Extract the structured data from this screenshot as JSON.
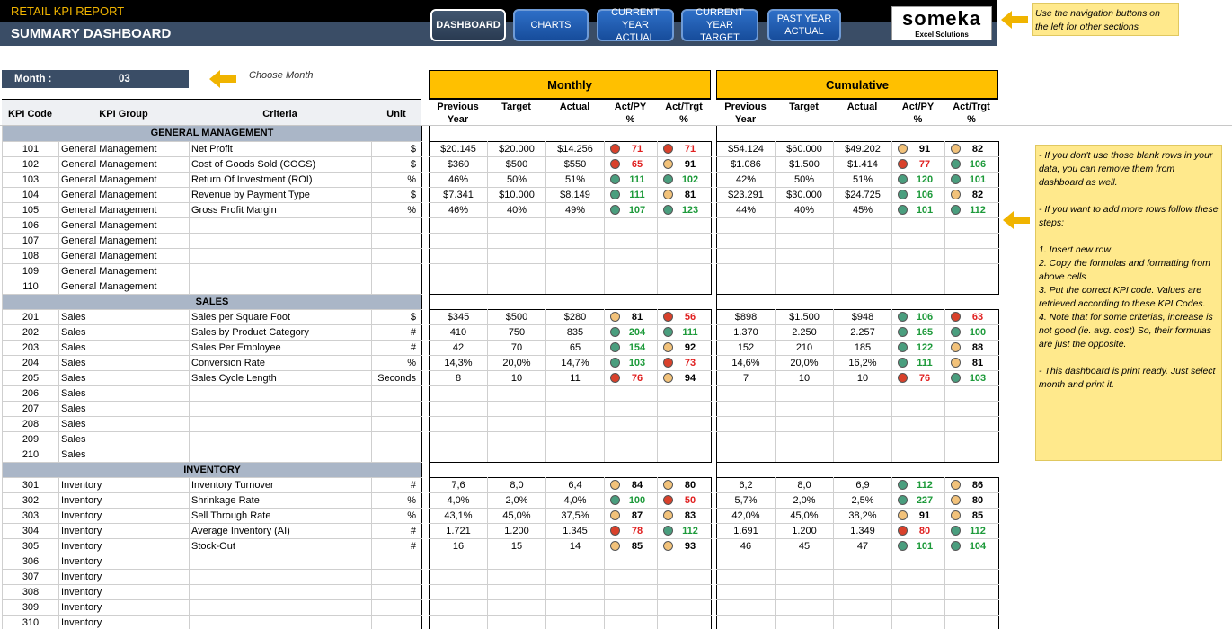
{
  "header": {
    "title_small": "RETAIL KPI REPORT",
    "title_main": "SUMMARY DASHBOARD",
    "nav": [
      {
        "label": "DASHBOARD",
        "active": true
      },
      {
        "label": "CHARTS",
        "active": false
      },
      {
        "label": "CURRENT YEAR\nACTUAL",
        "active": false
      },
      {
        "label": "CURRENT YEAR\nTARGET",
        "active": false
      },
      {
        "label": "PAST YEAR\nACTUAL",
        "active": false
      }
    ],
    "logo_name": "someka",
    "logo_sub": "Excel Solutions",
    "nav_note": "Use the navigation buttons on\nthe left for other sections"
  },
  "month": {
    "label": "Month :",
    "value": "03",
    "hint": "Choose Month"
  },
  "sections": {
    "monthly": "Monthly",
    "cumulative": "Cumulative"
  },
  "columns": {
    "left": [
      "KPI Code",
      "KPI Group",
      "Criteria",
      "Unit"
    ],
    "data": [
      "Previous\nYear",
      "Target",
      "Actual",
      "Act/PY\n%",
      "Act/Trgt\n%"
    ]
  },
  "colors": {
    "green": "#4a9e7e",
    "red": "#d9412b",
    "orange": "#f2c27a",
    "nav_bg": "#3a4d66",
    "accent": "#ffc000",
    "note": "#ffe98c"
  },
  "groups": [
    {
      "name": "GENERAL MANAGEMENT",
      "rows": [
        {
          "code": "101",
          "group": "General Management",
          "criteria": "Net Profit",
          "unit": "$",
          "m": [
            "$20.145",
            "$20.000",
            "$14.256",
            {
              "v": "71",
              "c": "red"
            },
            {
              "v": "71",
              "c": "red"
            }
          ],
          "c": [
            "$54.124",
            "$60.000",
            "$49.202",
            {
              "v": "91",
              "c": "orange"
            },
            {
              "v": "82",
              "c": "orange"
            }
          ]
        },
        {
          "code": "102",
          "group": "General Management",
          "criteria": "Cost of Goods Sold (COGS)",
          "unit": "$",
          "m": [
            "$360",
            "$500",
            "$550",
            {
              "v": "65",
              "c": "red"
            },
            {
              "v": "91",
              "c": "orange"
            }
          ],
          "c": [
            "$1.086",
            "$1.500",
            "$1.414",
            {
              "v": "77",
              "c": "red"
            },
            {
              "v": "106",
              "c": "green"
            }
          ]
        },
        {
          "code": "103",
          "group": "General Management",
          "criteria": "Return Of Investment (ROI)",
          "unit": "%",
          "m": [
            "46%",
            "50%",
            "51%",
            {
              "v": "111",
              "c": "green"
            },
            {
              "v": "102",
              "c": "green"
            }
          ],
          "c": [
            "42%",
            "50%",
            "51%",
            {
              "v": "120",
              "c": "green"
            },
            {
              "v": "101",
              "c": "green"
            }
          ]
        },
        {
          "code": "104",
          "group": "General Management",
          "criteria": "Revenue by Payment Type",
          "unit": "$",
          "m": [
            "$7.341",
            "$10.000",
            "$8.149",
            {
              "v": "111",
              "c": "green"
            },
            {
              "v": "81",
              "c": "orange"
            }
          ],
          "c": [
            "$23.291",
            "$30.000",
            "$24.725",
            {
              "v": "106",
              "c": "green"
            },
            {
              "v": "82",
              "c": "orange"
            }
          ]
        },
        {
          "code": "105",
          "group": "General Management",
          "criteria": "Gross Profit Margin",
          "unit": "%",
          "m": [
            "46%",
            "40%",
            "49%",
            {
              "v": "107",
              "c": "green"
            },
            {
              "v": "123",
              "c": "green"
            }
          ],
          "c": [
            "44%",
            "40%",
            "45%",
            {
              "v": "101",
              "c": "green"
            },
            {
              "v": "112",
              "c": "green"
            }
          ]
        },
        {
          "code": "106",
          "group": "General Management",
          "criteria": "",
          "unit": "",
          "m": null,
          "c": null
        },
        {
          "code": "107",
          "group": "General Management",
          "criteria": "",
          "unit": "",
          "m": null,
          "c": null
        },
        {
          "code": "108",
          "group": "General Management",
          "criteria": "",
          "unit": "",
          "m": null,
          "c": null
        },
        {
          "code": "109",
          "group": "General Management",
          "criteria": "",
          "unit": "",
          "m": null,
          "c": null
        },
        {
          "code": "110",
          "group": "General Management",
          "criteria": "",
          "unit": "",
          "m": null,
          "c": null
        }
      ]
    },
    {
      "name": "SALES",
      "rows": [
        {
          "code": "201",
          "group": "Sales",
          "criteria": "Sales per Square Foot",
          "unit": "$",
          "m": [
            "$345",
            "$500",
            "$280",
            {
              "v": "81",
              "c": "orange"
            },
            {
              "v": "56",
              "c": "red"
            }
          ],
          "c": [
            "$898",
            "$1.500",
            "$948",
            {
              "v": "106",
              "c": "green"
            },
            {
              "v": "63",
              "c": "red"
            }
          ]
        },
        {
          "code": "202",
          "group": "Sales",
          "criteria": "Sales by Product Category",
          "unit": "#",
          "m": [
            "410",
            "750",
            "835",
            {
              "v": "204",
              "c": "green"
            },
            {
              "v": "111",
              "c": "green"
            }
          ],
          "c": [
            "1.370",
            "2.250",
            "2.257",
            {
              "v": "165",
              "c": "green"
            },
            {
              "v": "100",
              "c": "green"
            }
          ]
        },
        {
          "code": "203",
          "group": "Sales",
          "criteria": "Sales Per Employee",
          "unit": "#",
          "m": [
            "42",
            "70",
            "65",
            {
              "v": "154",
              "c": "green"
            },
            {
              "v": "92",
              "c": "orange"
            }
          ],
          "c": [
            "152",
            "210",
            "185",
            {
              "v": "122",
              "c": "green"
            },
            {
              "v": "88",
              "c": "orange"
            }
          ]
        },
        {
          "code": "204",
          "group": "Sales",
          "criteria": "Conversion Rate",
          "unit": "%",
          "m": [
            "14,3%",
            "20,0%",
            "14,7%",
            {
              "v": "103",
              "c": "green"
            },
            {
              "v": "73",
              "c": "red"
            }
          ],
          "c": [
            "14,6%",
            "20,0%",
            "16,2%",
            {
              "v": "111",
              "c": "green"
            },
            {
              "v": "81",
              "c": "orange"
            }
          ]
        },
        {
          "code": "205",
          "group": "Sales",
          "criteria": "Sales Cycle Length",
          "unit": "Seconds",
          "m": [
            "8",
            "10",
            "11",
            {
              "v": "76",
              "c": "red"
            },
            {
              "v": "94",
              "c": "orange"
            }
          ],
          "c": [
            "7",
            "10",
            "10",
            {
              "v": "76",
              "c": "red"
            },
            {
              "v": "103",
              "c": "green"
            }
          ]
        },
        {
          "code": "206",
          "group": "Sales",
          "criteria": "",
          "unit": "",
          "m": null,
          "c": null
        },
        {
          "code": "207",
          "group": "Sales",
          "criteria": "",
          "unit": "",
          "m": null,
          "c": null
        },
        {
          "code": "208",
          "group": "Sales",
          "criteria": "",
          "unit": "",
          "m": null,
          "c": null
        },
        {
          "code": "209",
          "group": "Sales",
          "criteria": "",
          "unit": "",
          "m": null,
          "c": null
        },
        {
          "code": "210",
          "group": "Sales",
          "criteria": "",
          "unit": "",
          "m": null,
          "c": null
        }
      ]
    },
    {
      "name": "INVENTORY",
      "rows": [
        {
          "code": "301",
          "group": "Inventory",
          "criteria": "Inventory Turnover",
          "unit": "#",
          "m": [
            "7,6",
            "8,0",
            "6,4",
            {
              "v": "84",
              "c": "orange"
            },
            {
              "v": "80",
              "c": "orange"
            }
          ],
          "c": [
            "6,2",
            "8,0",
            "6,9",
            {
              "v": "112",
              "c": "green"
            },
            {
              "v": "86",
              "c": "orange"
            }
          ]
        },
        {
          "code": "302",
          "group": "Inventory",
          "criteria": "Shrinkage Rate",
          "unit": "%",
          "m": [
            "4,0%",
            "2,0%",
            "4,0%",
            {
              "v": "100",
              "c": "green"
            },
            {
              "v": "50",
              "c": "red"
            }
          ],
          "c": [
            "5,7%",
            "2,0%",
            "2,5%",
            {
              "v": "227",
              "c": "green"
            },
            {
              "v": "80",
              "c": "orange"
            }
          ]
        },
        {
          "code": "303",
          "group": "Inventory",
          "criteria": "Sell Through Rate",
          "unit": "%",
          "m": [
            "43,1%",
            "45,0%",
            "37,5%",
            {
              "v": "87",
              "c": "orange"
            },
            {
              "v": "83",
              "c": "orange"
            }
          ],
          "c": [
            "42,0%",
            "45,0%",
            "38,2%",
            {
              "v": "91",
              "c": "orange"
            },
            {
              "v": "85",
              "c": "orange"
            }
          ]
        },
        {
          "code": "304",
          "group": "Inventory",
          "criteria": "Average Inventory (AI)",
          "unit": "#",
          "m": [
            "1.721",
            "1.200",
            "1.345",
            {
              "v": "78",
              "c": "red"
            },
            {
              "v": "112",
              "c": "green"
            }
          ],
          "c": [
            "1.691",
            "1.200",
            "1.349",
            {
              "v": "80",
              "c": "red"
            },
            {
              "v": "112",
              "c": "green"
            }
          ]
        },
        {
          "code": "305",
          "group": "Inventory",
          "criteria": "Stock-Out",
          "unit": "#",
          "m": [
            "16",
            "15",
            "14",
            {
              "v": "85",
              "c": "orange"
            },
            {
              "v": "93",
              "c": "orange"
            }
          ],
          "c": [
            "46",
            "45",
            "47",
            {
              "v": "101",
              "c": "green"
            },
            {
              "v": "104",
              "c": "green"
            }
          ]
        },
        {
          "code": "306",
          "group": "Inventory",
          "criteria": "",
          "unit": "",
          "m": null,
          "c": null
        },
        {
          "code": "307",
          "group": "Inventory",
          "criteria": "",
          "unit": "",
          "m": null,
          "c": null
        },
        {
          "code": "308",
          "group": "Inventory",
          "criteria": "",
          "unit": "",
          "m": null,
          "c": null
        },
        {
          "code": "309",
          "group": "Inventory",
          "criteria": "",
          "unit": "",
          "m": null,
          "c": null
        },
        {
          "code": "310",
          "group": "Inventory",
          "criteria": "",
          "unit": "",
          "m": null,
          "c": null
        }
      ]
    }
  ],
  "help_note": "- If you don't use those blank rows in your data, you can remove them from dashboard as well.\n\n- If you want to add more rows follow these steps:\n\n1. Insert new row\n2. Copy the formulas and formatting from above cells\n3. Put the correct KPI code. Values are retrieved according to these KPI Codes.\n4. Note that for some criterias, increase is not good (ie. avg. cost) So, their formulas are just the opposite.\n\n- This dashboard is print ready. Just select month and print it."
}
